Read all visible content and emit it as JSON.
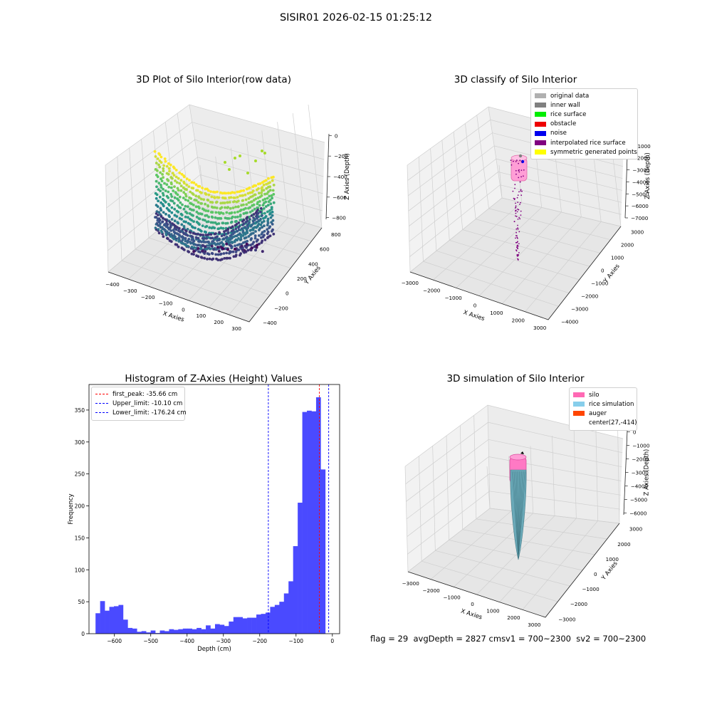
{
  "figure": {
    "suptitle": "SISIR01 2026-02-15 01:25:12",
    "footer": {
      "flag": "flag = 29",
      "avg": "avgDepth = 2827 cm",
      "sv1": "sv1 = 700~2300",
      "sv2": "sv2 = 700~2300"
    }
  },
  "chart_data": [
    {
      "type": "scatter",
      "title": "3D Plot of Silo Interior(row data)",
      "xlabel": "X Axies",
      "ylabel": "Y Axies",
      "zlabel": "Z Axies (Depth)",
      "xticks": [
        "−400",
        "−300",
        "−200",
        "−100",
        "0",
        "100",
        "200",
        "300"
      ],
      "yticks": [
        "−400",
        "−200",
        "0",
        "200",
        "400",
        "600",
        "800"
      ],
      "zticks": [
        "0",
        "−200",
        "−400",
        "−600",
        "−800"
      ],
      "xlim": [
        -430,
        310
      ],
      "ylim": [
        -420,
        900
      ],
      "zlim": [
        -900,
        0
      ],
      "colormap": "viridis"
    },
    {
      "type": "scatter",
      "title": "3D classify of Silo Interior",
      "xlabel": "X Axies",
      "ylabel": "Y Axies",
      "zlabel": "Z Axies (Depth)",
      "xticks": [
        "−3000",
        "−2000",
        "−1000",
        "0",
        "1000",
        "2000",
        "3000"
      ],
      "yticks": [
        "−4000",
        "−3000",
        "−2000",
        "−1000",
        "0",
        "1000",
        "2000",
        "3000"
      ],
      "zticks": [
        "0",
        "−1000",
        "−2000",
        "−3000",
        "−4000",
        "−5000",
        "−6000",
        "−7000"
      ],
      "legend": [
        {
          "label": "original data",
          "color": "#b0b0b0"
        },
        {
          "label": "inner wall",
          "color": "#808080"
        },
        {
          "label": "rice surface",
          "color": "#00ee00"
        },
        {
          "label": "obstacle",
          "color": "#ee0000"
        },
        {
          "label": "noise",
          "color": "#0000ee"
        },
        {
          "label": "interpolated rice surface",
          "color": "#800080"
        },
        {
          "label": "symmetric generated points",
          "color": "#ffff00"
        }
      ]
    },
    {
      "type": "bar",
      "title": "Histogram of Z-Axies (Height) Values",
      "xlabel": "Depth (cm)",
      "ylabel": "Frequency",
      "xlim": [
        -670,
        20
      ],
      "ylim": [
        0,
        390
      ],
      "xticks": [
        -600,
        -500,
        -400,
        -300,
        -200,
        -100,
        0
      ],
      "yticks": [
        0,
        50,
        100,
        150,
        200,
        250,
        300,
        350
      ],
      "bar_color": "#4a4aff",
      "bin_start": -652,
      "bin_width": 12.65,
      "values": [
        32,
        51,
        36,
        42,
        43,
        45,
        22,
        9,
        8,
        3,
        4,
        2,
        5,
        1,
        5,
        4,
        7,
        6,
        7,
        8,
        8,
        7,
        9,
        7,
        13,
        8,
        15,
        14,
        12,
        19,
        26,
        26,
        24,
        25,
        25,
        30,
        31,
        33,
        42,
        45,
        50,
        63,
        82,
        137,
        205,
        347,
        349,
        348,
        370,
        257
      ],
      "vlines": [
        {
          "label": "first_peak: -35.66 cm",
          "x": -35.66,
          "color": "#ff0000"
        },
        {
          "label": "Upper_limit: -10.10 cm",
          "x": -10.1,
          "color": "#0000ff"
        },
        {
          "label": "Lower_limit: -176.24 cm",
          "x": -176.24,
          "color": "#0000ff"
        }
      ]
    },
    {
      "type": "surface",
      "title": "3D simulation of Silo Interior",
      "xlabel": "X Axies",
      "ylabel": "Y Axies",
      "zlabel": "Z Axies (Depth)",
      "xticks": [
        "−3000",
        "−2000",
        "−1000",
        "0",
        "1000",
        "2000",
        "3000"
      ],
      "yticks": [
        "−3000",
        "−2000",
        "−1000",
        "0",
        "1000",
        "2000",
        "3000"
      ],
      "zticks": [
        "0",
        "−1000",
        "−2000",
        "−3000",
        "−4000",
        "−5000",
        "−6000"
      ],
      "legend": [
        {
          "label": "silo",
          "color": "#ff69b4"
        },
        {
          "label": "rice simulation",
          "color": "#87ceeb"
        },
        {
          "label": "auger",
          "color": "#ff4500"
        },
        {
          "label": "center(27,-414)",
          "color": "#ffffff"
        }
      ]
    }
  ]
}
